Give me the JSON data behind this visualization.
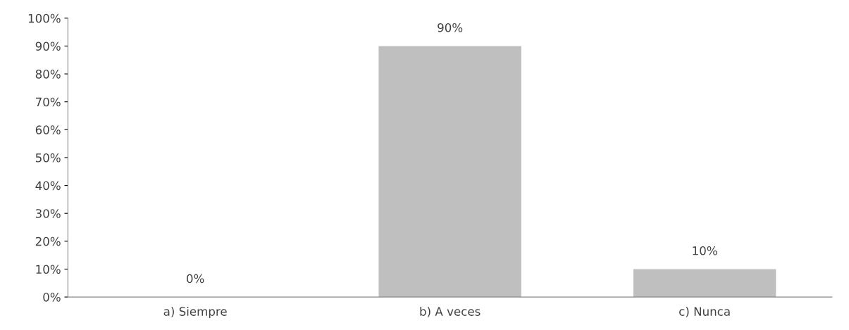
{
  "chart_data": {
    "type": "bar",
    "categories": [
      "a) Siempre",
      "b) A veces",
      "c) Nunca"
    ],
    "values": [
      0,
      90,
      10
    ],
    "value_labels": [
      "0%",
      "90%",
      "10%"
    ],
    "color": "#bfbfbf",
    "ylim": [
      0,
      100
    ],
    "yticks": [
      {
        "value": 0,
        "label": "0%"
      },
      {
        "value": 10,
        "label": "10%"
      },
      {
        "value": 20,
        "label": "20%"
      },
      {
        "value": 30,
        "label": "30%"
      },
      {
        "value": 40,
        "label": "40%"
      },
      {
        "value": 50,
        "label": "50%"
      },
      {
        "value": 60,
        "label": "60%"
      },
      {
        "value": 70,
        "label": "70%"
      },
      {
        "value": 80,
        "label": "80%"
      },
      {
        "value": 90,
        "label": "90%"
      },
      {
        "value": 100,
        "label": "100%"
      }
    ],
    "grid": false,
    "legend": false
  }
}
